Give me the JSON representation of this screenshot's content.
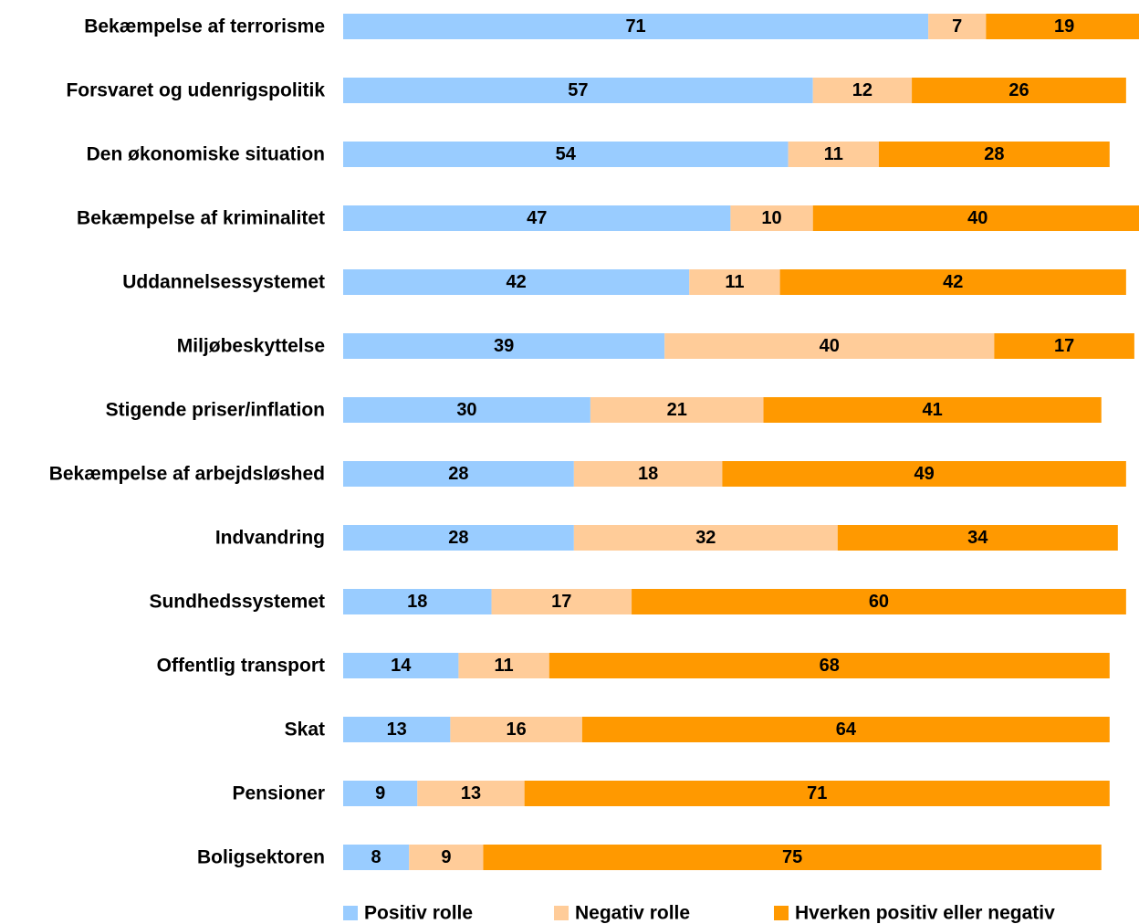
{
  "chart_data": {
    "type": "bar",
    "orientation": "horizontal",
    "stacked": true,
    "categories": [
      "Bekæmpelse af terrorisme",
      "Forsvaret og udenrigspolitik",
      "Den økonomiske situation",
      "Bekæmpelse af kriminalitet",
      "Uddannelsessystemet",
      "Miljøbeskyttelse",
      "Stigende priser/inflation",
      "Bekæmpelse af arbejdsløshed",
      "Indvandring",
      "Sundhedssystemet",
      "Offentlig transport",
      "Skat",
      "Pensioner",
      "Boligsektoren"
    ],
    "series": [
      {
        "name": "Positiv rolle",
        "color": "#99CCFF",
        "values": [
          71,
          57,
          54,
          47,
          42,
          39,
          30,
          28,
          28,
          18,
          14,
          13,
          9,
          8
        ]
      },
      {
        "name": "Negativ rolle",
        "color": "#FFCC99",
        "values": [
          7,
          12,
          11,
          10,
          11,
          40,
          21,
          18,
          32,
          17,
          11,
          16,
          13,
          9
        ]
      },
      {
        "name": "Hverken positiv eller negativ",
        "color": "#FF9900",
        "values": [
          19,
          26,
          28,
          40,
          42,
          17,
          41,
          49,
          34,
          60,
          68,
          64,
          71,
          75
        ]
      }
    ],
    "data_labels": true,
    "legend_position": "bottom",
    "grid": false,
    "title": "",
    "xlabel": "",
    "ylabel": ""
  }
}
